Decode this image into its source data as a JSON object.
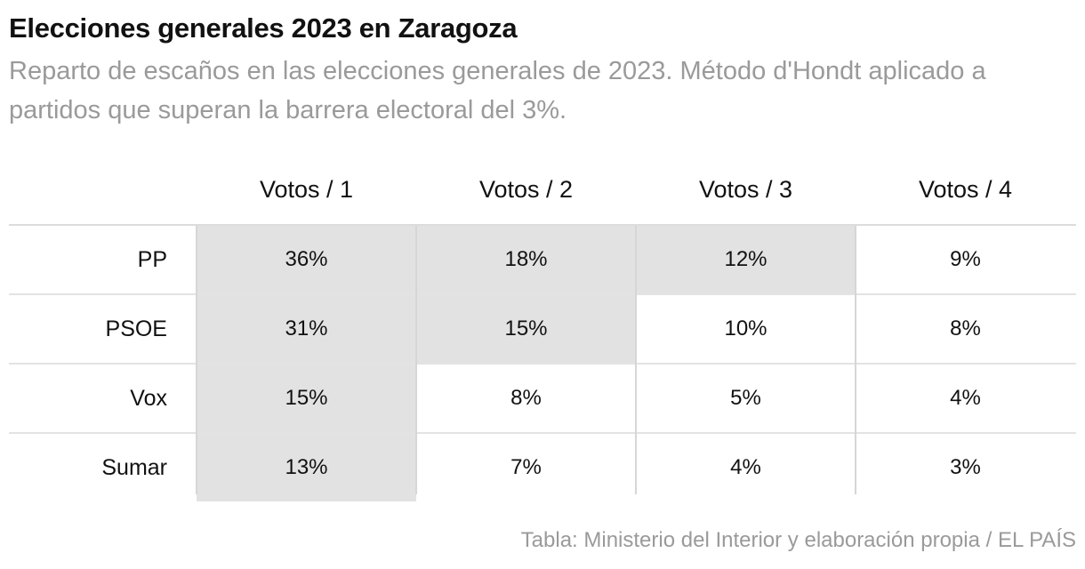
{
  "title": "Elecciones generales 2023 en Zaragoza",
  "subtitle": "Reparto de escaños en las elecciones generales de 2023. Método d'Hondt aplicado a partidos que superan la barrera electoral del 3%.",
  "source": "Tabla: Ministerio del Interior y elaboración propia / EL PAÍS",
  "colors": {
    "seat_cell": "#e2e2e2",
    "subtitle": "#9a9a9a",
    "text": "#111111"
  },
  "chart_data": {
    "type": "table",
    "columns": [
      "Votos / 1",
      "Votos / 2",
      "Votos / 3",
      "Votos / 4"
    ],
    "rows": [
      {
        "party": "PP",
        "values": [
          "36%",
          "18%",
          "12%",
          "9%"
        ],
        "seat_won": [
          true,
          true,
          true,
          false
        ]
      },
      {
        "party": "PSOE",
        "values": [
          "31%",
          "15%",
          "10%",
          "8%"
        ],
        "seat_won": [
          true,
          true,
          false,
          false
        ]
      },
      {
        "party": "Vox",
        "values": [
          "15%",
          "8%",
          "5%",
          "4%"
        ],
        "seat_won": [
          true,
          false,
          false,
          false
        ]
      },
      {
        "party": "Sumar",
        "values": [
          "13%",
          "7%",
          "4%",
          "3%"
        ],
        "seat_won": [
          true,
          false,
          false,
          false
        ]
      }
    ]
  }
}
